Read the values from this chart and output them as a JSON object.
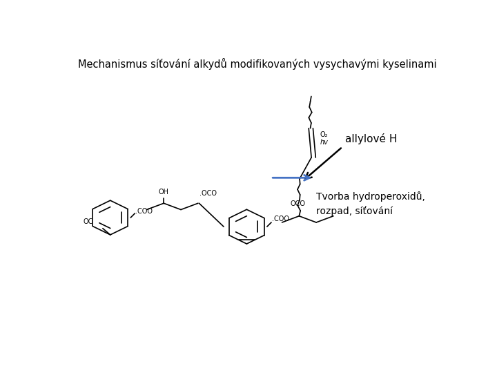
{
  "title": "Mechanismus síťování alkydů modifikovaných vysychavými kyselinami",
  "bg_color": "#ffffff",
  "line_color": "#000000",
  "arrow_blue": "#4472C4",
  "title_fontsize": 10.5,
  "label_fontsize": 7,
  "text_fontsize": 10,
  "allylove_text": "allylové H",
  "tvorba_text": "Tvorba hydroperoxidů,\nrozpad, síťování",
  "O2_text": "O₂",
  "hv_text": "hv"
}
